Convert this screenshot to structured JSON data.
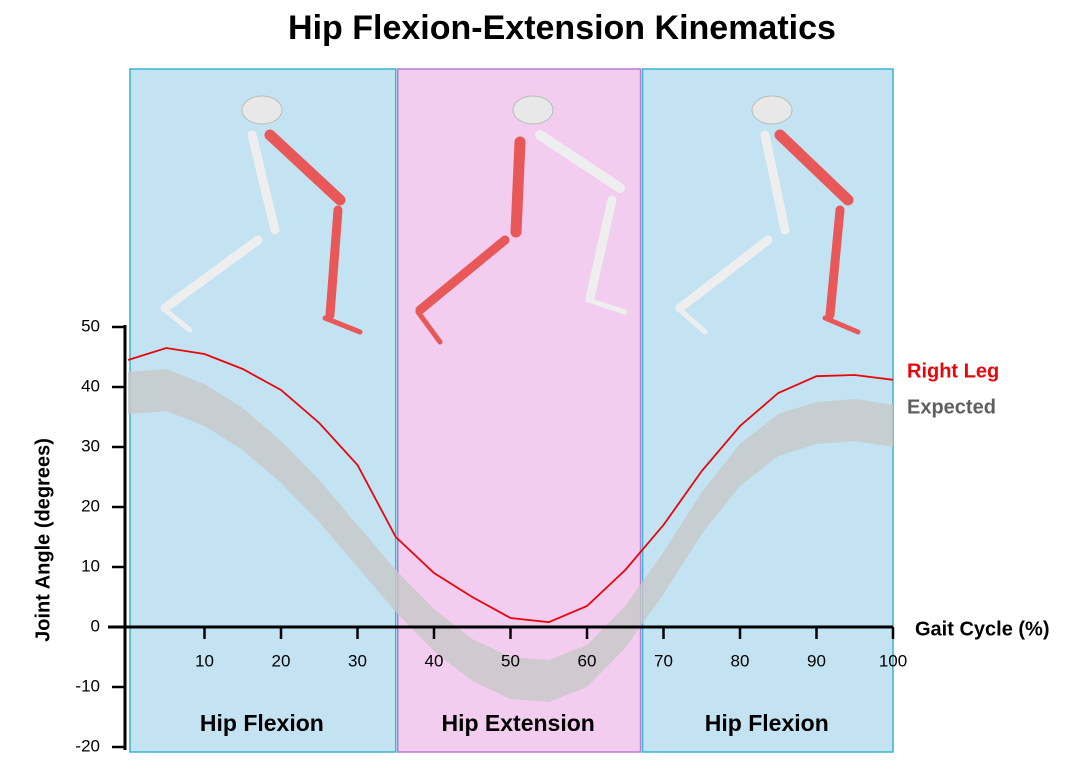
{
  "chart_data": {
    "type": "line",
    "title": "Hip Flexion-Extension Kinematics",
    "x_label": "Gait Cycle (%)",
    "y_label": "Joint Angle (degrees)",
    "xlim": [
      0,
      100
    ],
    "ylim": [
      -20,
      50
    ],
    "xticks": [
      10,
      20,
      30,
      40,
      50,
      60,
      70,
      80,
      90,
      100
    ],
    "yticks": [
      -20,
      -10,
      0,
      10,
      20,
      30,
      40,
      50
    ],
    "phases": [
      {
        "label": "Hip Flexion",
        "start": 0,
        "end": 35,
        "color": "#c3e3f3"
      },
      {
        "label": "Hip Extension",
        "start": 35,
        "end": 67,
        "color": "#f2cdef"
      },
      {
        "label": "Hip Flexion",
        "start": 67,
        "end": 100,
        "color": "#c3e3f3"
      }
    ],
    "x": [
      0,
      5,
      10,
      15,
      20,
      25,
      30,
      35,
      40,
      45,
      50,
      55,
      60,
      65,
      70,
      75,
      80,
      85,
      90,
      95,
      100
    ],
    "series": [
      {
        "name": "Right Leg",
        "color": "#e8060b",
        "values": [
          44.5,
          46.5,
          45.5,
          43,
          39.5,
          34,
          27,
          15,
          9,
          5,
          1.5,
          0.8,
          3.5,
          9.5,
          17,
          26,
          33.5,
          39,
          41.8,
          42,
          41.2
        ]
      },
      {
        "name": "Expected",
        "color": "#5f5f5f",
        "band_color": "#c8c8c8",
        "upper": [
          42.5,
          43,
          40.5,
          36.5,
          31,
          24.5,
          17,
          9.5,
          3,
          -2,
          -5,
          -5.5,
          -3,
          3.5,
          12.5,
          22.5,
          30.5,
          35.5,
          37.5,
          38,
          37
        ],
        "lower": [
          35.5,
          36,
          33.5,
          29.5,
          24,
          17.5,
          10,
          2.5,
          -4,
          -9,
          -12,
          -12.5,
          -10,
          -3.5,
          5.5,
          15.5,
          23.5,
          28.5,
          30.5,
          31,
          30
        ]
      }
    ]
  }
}
